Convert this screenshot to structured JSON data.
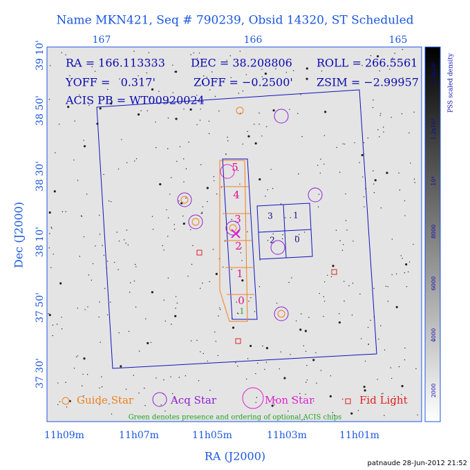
{
  "title": "Name MKN421, Seq # 790239, Obsid 14320, ST Scheduled",
  "info": {
    "ra": "RA = 166.113333",
    "dec": "DEC = 38.208806",
    "roll": "ROLL = 266.5561",
    "yoff": "YOFF =   0.317'",
    "zoff": "ZOFF = −0.2500'",
    "zsim": "ZSIM = −2.99957",
    "acis_pb": "ACIS PB = WT00920024"
  },
  "axes": {
    "top_ticks": [
      "167",
      "166",
      "165"
    ],
    "left_ticks": [
      "39 10'",
      "38 50'",
      "38 30'",
      "38 10'",
      "37 50'",
      "37 30'"
    ],
    "bottom_ticks": [
      "11h09m",
      "11h07m",
      "11h05m",
      "11h03m",
      "11h01m"
    ],
    "x_label": "RA (J2000)",
    "y_label": "Dec (J2000)"
  },
  "colorbar": {
    "label": "PSS scaled density",
    "ticks": [
      "2000",
      "4000",
      "6000",
      "8000",
      "10⁴",
      "1.2x10⁴",
      "1.4x10⁴"
    ]
  },
  "chips": {
    "s_array": [
      "5",
      "4",
      "3",
      "2",
      "1",
      "0"
    ],
    "i_array": [
      "3",
      "1",
      "2",
      "0"
    ],
    "optional": "1"
  },
  "legend": [
    "Guide Star",
    "Acq Star",
    "Mon Star",
    "Fid Light"
  ],
  "note": "Green denotes presence and ordering of optional ACIS chips",
  "footer": "patnaude 28-Jun-2012 21:52"
}
